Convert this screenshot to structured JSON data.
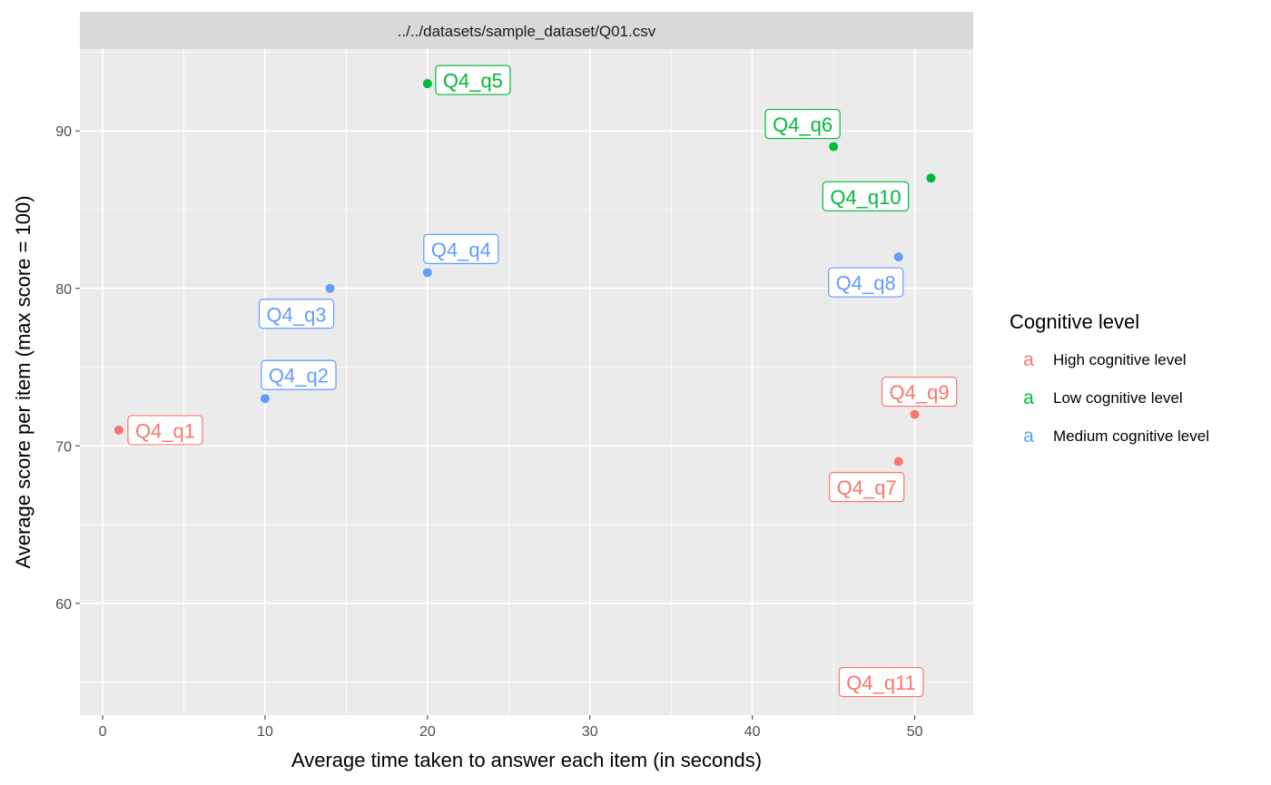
{
  "chart_data": {
    "type": "scatter",
    "facet_title": "../../datasets/sample_dataset/Q01.csv",
    "xlabel": "Average time taken to answer each item (in seconds)",
    "ylabel": "Average score per item (max score = 100)",
    "xlim": [
      -1.4,
      53.6
    ],
    "ylim": [
      52.9,
      95.2
    ],
    "x_ticks": [
      0,
      10,
      20,
      30,
      40,
      50
    ],
    "y_ticks": [
      60,
      70,
      80,
      90
    ],
    "grid": true,
    "legend": {
      "title": "Cognitive level",
      "position": "right",
      "key_glyph": "a",
      "entries": [
        {
          "name": "High cognitive level",
          "color": "#F8766D"
        },
        {
          "name": "Low cognitive level",
          "color": "#00BA38"
        },
        {
          "name": "Medium cognitive level",
          "color": "#619CFF"
        }
      ]
    },
    "series": [
      {
        "name": "High cognitive level",
        "color": "#F8766D",
        "points": [
          {
            "label": "Q4_q1",
            "x": 1,
            "y": 71
          },
          {
            "label": "Q4_q7",
            "x": 49,
            "y": 69
          },
          {
            "label": "Q4_q9",
            "x": 50,
            "y": 72
          },
          {
            "label": "Q4_q11",
            "x": 50,
            "y": 55
          }
        ]
      },
      {
        "name": "Low cognitive level",
        "color": "#00BA38",
        "points": [
          {
            "label": "Q4_q5",
            "x": 20,
            "y": 93
          },
          {
            "label": "Q4_q6",
            "x": 45,
            "y": 89
          },
          {
            "label": "Q4_q10",
            "x": 51,
            "y": 87
          }
        ]
      },
      {
        "name": "Medium cognitive level",
        "color": "#619CFF",
        "points": [
          {
            "label": "Q4_q2",
            "x": 10,
            "y": 73
          },
          {
            "label": "Q4_q3",
            "x": 14,
            "y": 80
          },
          {
            "label": "Q4_q4",
            "x": 20,
            "y": 81
          },
          {
            "label": "Q4_q8",
            "x": 49,
            "y": 82
          }
        ]
      }
    ]
  }
}
